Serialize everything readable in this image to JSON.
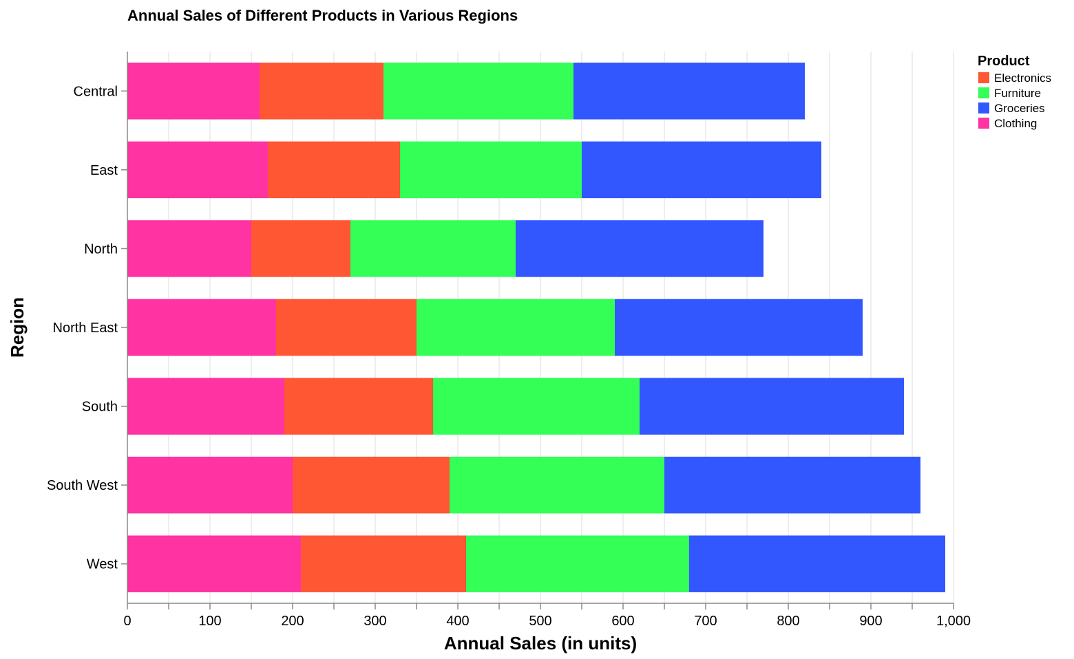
{
  "chart_data": {
    "type": "bar",
    "orientation": "horizontal",
    "stacked": true,
    "title": "Annual Sales of Different Products in Various Regions",
    "xlabel": "Annual Sales (in units)",
    "ylabel": "Region",
    "xlim": [
      0,
      1000
    ],
    "x_ticks": [
      "0",
      "100",
      "200",
      "300",
      "400",
      "500",
      "600",
      "700",
      "800",
      "900",
      "1,000"
    ],
    "grid": true,
    "legend_title": "Product",
    "legend_position": "top-right",
    "categories": [
      "Central",
      "East",
      "North",
      "North East",
      "South",
      "South West",
      "West"
    ],
    "stack_order": [
      "Clothing",
      "Electronics",
      "Furniture",
      "Groceries"
    ],
    "series": [
      {
        "name": "Electronics",
        "color": "#ff5733",
        "values": [
          150,
          160,
          120,
          170,
          180,
          190,
          200
        ]
      },
      {
        "name": "Furniture",
        "color": "#33ff57",
        "values": [
          230,
          220,
          200,
          240,
          250,
          260,
          270
        ]
      },
      {
        "name": "Groceries",
        "color": "#3357ff",
        "values": [
          280,
          290,
          300,
          300,
          320,
          310,
          310
        ]
      },
      {
        "name": "Clothing",
        "color": "#ff33a1",
        "values": [
          160,
          170,
          150,
          180,
          190,
          200,
          210
        ]
      }
    ]
  }
}
